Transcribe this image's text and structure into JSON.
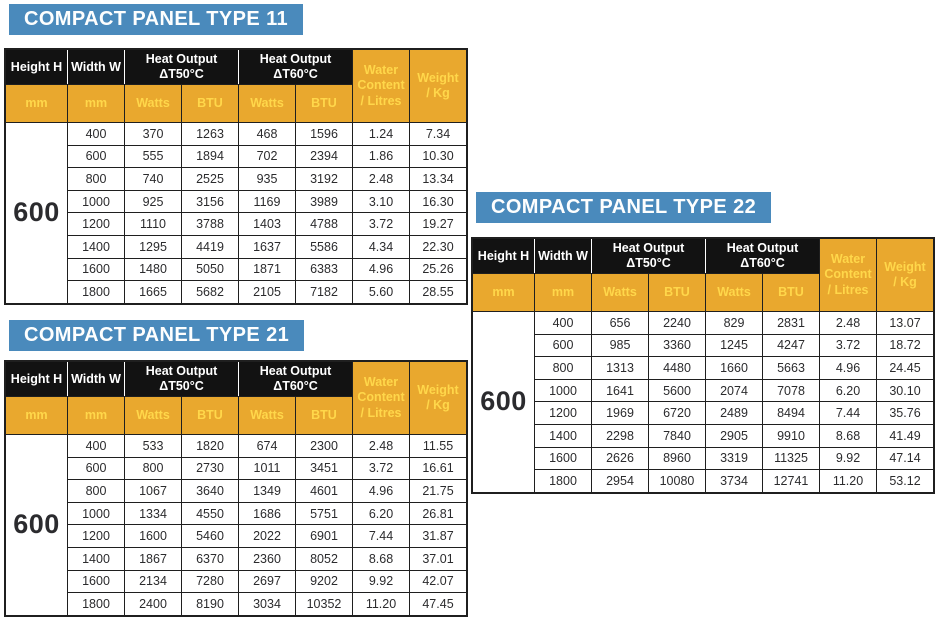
{
  "colors": {
    "banner_blue": "#4a8abc",
    "amber": "#e9a82e",
    "header_black": "#121212",
    "subheader_text": "#ffd74a",
    "table_line": "#1f1f1f"
  },
  "header_labels": {
    "height": "Height H",
    "width": "Width W",
    "heat_output": "Heat Output",
    "dt50": "ΔT50°C",
    "dt60": "ΔT60°C",
    "mm": "mm",
    "watts": "Watts",
    "btu": "BTU",
    "water_l1": "Water",
    "water_l2": "Content",
    "water_l3": "/ Litres",
    "weight_l1": "Weight",
    "weight_l2": "/ Kg"
  },
  "tables": [
    {
      "title": "COMPACT PANEL TYPE 11",
      "height_label": "600",
      "rows": [
        [
          "400",
          "370",
          "1263",
          "468",
          "1596",
          "1.24",
          "7.34"
        ],
        [
          "600",
          "555",
          "1894",
          "702",
          "2394",
          "1.86",
          "10.30"
        ],
        [
          "800",
          "740",
          "2525",
          "935",
          "3192",
          "2.48",
          "13.34"
        ],
        [
          "1000",
          "925",
          "3156",
          "1169",
          "3989",
          "3.10",
          "16.30"
        ],
        [
          "1200",
          "1110",
          "3788",
          "1403",
          "4788",
          "3.72",
          "19.27"
        ],
        [
          "1400",
          "1295",
          "4419",
          "1637",
          "5586",
          "4.34",
          "22.30"
        ],
        [
          "1600",
          "1480",
          "5050",
          "1871",
          "6383",
          "4.96",
          "25.26"
        ],
        [
          "1800",
          "1665",
          "5682",
          "2105",
          "7182",
          "5.60",
          "28.55"
        ]
      ]
    },
    {
      "title": "COMPACT PANEL TYPE 21",
      "height_label": "600",
      "rows": [
        [
          "400",
          "533",
          "1820",
          "674",
          "2300",
          "2.48",
          "11.55"
        ],
        [
          "600",
          "800",
          "2730",
          "1011",
          "3451",
          "3.72",
          "16.61"
        ],
        [
          "800",
          "1067",
          "3640",
          "1349",
          "4601",
          "4.96",
          "21.75"
        ],
        [
          "1000",
          "1334",
          "4550",
          "1686",
          "5751",
          "6.20",
          "26.81"
        ],
        [
          "1200",
          "1600",
          "5460",
          "2022",
          "6901",
          "7.44",
          "31.87"
        ],
        [
          "1400",
          "1867",
          "6370",
          "2360",
          "8052",
          "8.68",
          "37.01"
        ],
        [
          "1600",
          "2134",
          "7280",
          "2697",
          "9202",
          "9.92",
          "42.07"
        ],
        [
          "1800",
          "2400",
          "8190",
          "3034",
          "10352",
          "11.20",
          "47.45"
        ]
      ]
    },
    {
      "title": "COMPACT PANEL TYPE 22",
      "height_label": "600",
      "rows": [
        [
          "400",
          "656",
          "2240",
          "829",
          "2831",
          "2.48",
          "13.07"
        ],
        [
          "600",
          "985",
          "3360",
          "1245",
          "4247",
          "3.72",
          "18.72"
        ],
        [
          "800",
          "1313",
          "4480",
          "1660",
          "5663",
          "4.96",
          "24.45"
        ],
        [
          "1000",
          "1641",
          "5600",
          "2074",
          "7078",
          "6.20",
          "30.10"
        ],
        [
          "1200",
          "1969",
          "6720",
          "2489",
          "8494",
          "7.44",
          "35.76"
        ],
        [
          "1400",
          "2298",
          "7840",
          "2905",
          "9910",
          "8.68",
          "41.49"
        ],
        [
          "1600",
          "2626",
          "8960",
          "3319",
          "11325",
          "9.92",
          "47.14"
        ],
        [
          "1800",
          "2954",
          "10080",
          "3734",
          "12741",
          "11.20",
          "53.12"
        ]
      ]
    }
  ]
}
